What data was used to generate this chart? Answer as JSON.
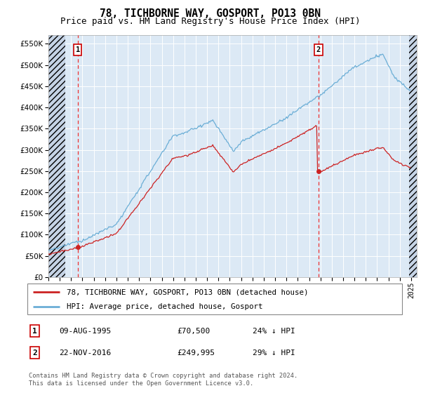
{
  "title": "78, TICHBORNE WAY, GOSPORT, PO13 0BN",
  "subtitle": "Price paid vs. HM Land Registry's House Price Index (HPI)",
  "ylabel_values": [
    0,
    50000,
    100000,
    150000,
    200000,
    250000,
    300000,
    350000,
    400000,
    450000,
    500000,
    550000
  ],
  "ylim": [
    0,
    570000
  ],
  "xlim_start": 1993.0,
  "xlim_end": 2025.5,
  "purchase1_year": 1995,
  "purchase1_month": 8,
  "purchase1_price": 70500,
  "purchase2_year": 2016,
  "purchase2_month": 11,
  "purchase2_price": 249995,
  "hpi_color": "#6baed6",
  "price_color": "#cc2222",
  "dashed_color": "#ee3333",
  "bg_color": "#dce9f5",
  "grid_color": "#ffffff",
  "legend_label1": "78, TICHBORNE WAY, GOSPORT, PO13 0BN (detached house)",
  "legend_label2": "HPI: Average price, detached house, Gosport",
  "table_row1": [
    "1",
    "09-AUG-1995",
    "£70,500",
    "24% ↓ HPI"
  ],
  "table_row2": [
    "2",
    "22-NOV-2016",
    "£249,995",
    "29% ↓ HPI"
  ],
  "footnote": "Contains HM Land Registry data © Crown copyright and database right 2024.\nThis data is licensed under the Open Government Licence v3.0.",
  "title_fontsize": 10.5,
  "subtitle_fontsize": 9,
  "tick_fontsize": 7.5
}
